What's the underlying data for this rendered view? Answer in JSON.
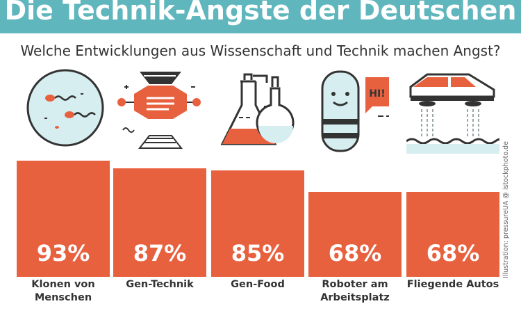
{
  "header": {
    "title": "Die Technik-Ängste der Deutschen",
    "subtitle": "Welche Entwicklungen aus Wissenschaft und Technik machen Angst?",
    "credit": "Illustration: pressureUA @ istockphoto.de"
  },
  "colors": {
    "title_bar": "#5fb6bd",
    "bar": "#e8613f",
    "icon_teal": "#d6eef0",
    "icon_dark": "#333333"
  },
  "icons": [
    "cloning-icon",
    "gene-technology-icon",
    "lab-flasks-icon",
    "robot-icon",
    "flying-car-icon"
  ],
  "chart_data": {
    "type": "bar",
    "title": "Die Technik-Ängste der Deutschen",
    "subtitle": "Welche Entwicklungen aus Wissenschaft und Technik machen Angst?",
    "categories": [
      "Klonen von Menschen",
      "Gen-Technik",
      "Gen-Food",
      "Roboter am Arbeitsplatz",
      "Fliegende Autos"
    ],
    "values": [
      93,
      87,
      85,
      68,
      68
    ],
    "value_labels": [
      "93%",
      "87%",
      "85%",
      "68%",
      "68%"
    ],
    "unit": "%",
    "ylim": [
      0,
      100
    ],
    "grid": false,
    "legend": "none"
  }
}
